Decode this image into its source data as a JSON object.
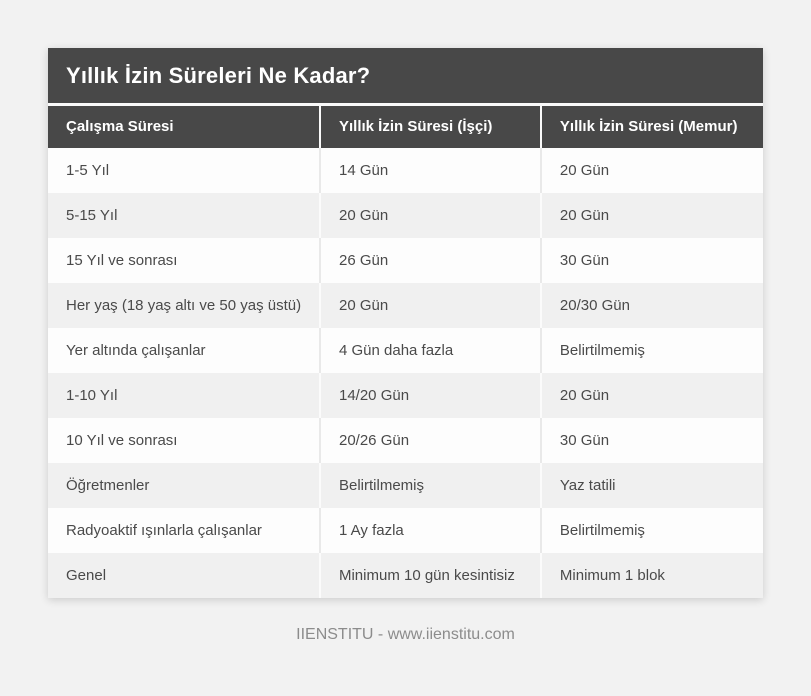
{
  "chart_data": {
    "type": "table",
    "title": "Yıllık İzin Süreleri Ne Kadar?",
    "columns": [
      "Çalışma Süresi",
      "Yıllık İzin Süresi (İşçi)",
      "Yıllık İzin Süresi (Memur)"
    ],
    "rows": [
      [
        "1-5 Yıl",
        "14 Gün",
        "20 Gün"
      ],
      [
        "5-15 Yıl",
        "20 Gün",
        "20 Gün"
      ],
      [
        "15 Yıl ve sonrası",
        "26 Gün",
        "30 Gün"
      ],
      [
        "Her yaş (18 yaş altı ve 50 yaş üstü)",
        "20 Gün",
        "20/30 Gün"
      ],
      [
        "Yer altında çalışanlar",
        "4 Gün daha fazla",
        "Belirtilmemiş"
      ],
      [
        "1-10 Yıl",
        "14/20 Gün",
        "20 Gün"
      ],
      [
        "10 Yıl ve sonrası",
        "20/26 Gün",
        "30 Gün"
      ],
      [
        "Öğretmenler",
        "Belirtilmemiş",
        "Yaz tatili"
      ],
      [
        "Radyoaktif ışınlarla çalışanlar",
        "1 Ay fazla",
        "Belirtilmemiş"
      ],
      [
        "Genel",
        "Minimum 10 gün kesintisiz",
        "Minimum 1 blok"
      ]
    ],
    "layout_hints": {
      "header_position": "top",
      "row_striping": "alternating",
      "grid": "vertical-dividers"
    }
  },
  "footer": {
    "credit": "IIENSTITU - www.iienstitu.com"
  },
  "colors": {
    "page_background": "#f2f2f2",
    "header_background": "#484848",
    "header_text": "#ffffff",
    "row_odd_background": "#fdfdfd",
    "row_even_background": "#f0f0f0",
    "cell_text": "#4a4a4a",
    "divider_light": "#fafafa",
    "divider_gray": "#e9e9e9",
    "footer_text": "#8c8c8c"
  }
}
